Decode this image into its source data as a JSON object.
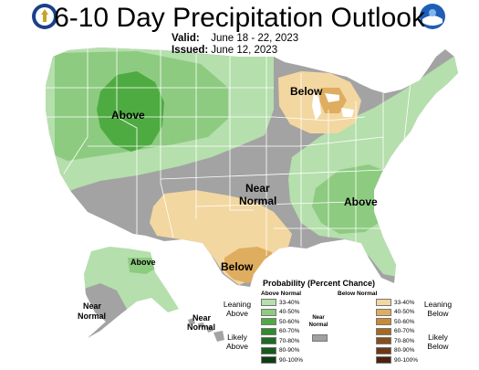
{
  "header": {
    "title": "6-10 Day Precipitation Outlook",
    "valid_label": "Valid:",
    "valid_value": "June 18 - 22, 2023",
    "issued_label": "Issued:",
    "issued_value": "June 12, 2023"
  },
  "logos": {
    "left": "doc-seal-icon",
    "right": "noaa-logo-icon"
  },
  "map_labels": {
    "west": "Above",
    "great_lakes": "Below",
    "central_near": "Near",
    "central_normal": "Normal",
    "southeast": "Above",
    "texas": "Below",
    "alaska": "Above",
    "alaska_near": "Near",
    "alaska_normal": "Normal",
    "hawaii_near": "Near",
    "hawaii_normal": "Normal"
  },
  "legend": {
    "title": "Probability (Percent Chance)",
    "above_header": "Above Normal",
    "below_header": "Below Normal",
    "near_label_1": "Near",
    "near_label_2": "Normal",
    "leaning_above_1": "Leaning",
    "leaning_above_2": "Above",
    "likely_above_1": "Likely",
    "likely_above_2": "Above",
    "leaning_below_1": "Leaning",
    "leaning_below_2": "Below",
    "likely_below_1": "Likely",
    "likely_below_2": "Below",
    "above": [
      {
        "range": "33-40%",
        "color": "#b5dfac"
      },
      {
        "range": "40-50%",
        "color": "#8dcb80"
      },
      {
        "range": "50-60%",
        "color": "#4eab41"
      },
      {
        "range": "60-70%",
        "color": "#2e8b2e"
      },
      {
        "range": "70-80%",
        "color": "#1e6b25"
      },
      {
        "range": "80-90%",
        "color": "#175a1e"
      },
      {
        "range": "90-100%",
        "color": "#0e3d13"
      }
    ],
    "below": [
      {
        "range": "33-40%",
        "color": "#f3d7a0"
      },
      {
        "range": "40-50%",
        "color": "#dfad5f"
      },
      {
        "range": "50-60%",
        "color": "#c98a36"
      },
      {
        "range": "60-70%",
        "color": "#a36a24"
      },
      {
        "range": "70-80%",
        "color": "#864f1b"
      },
      {
        "range": "80-90%",
        "color": "#6a3915"
      },
      {
        "range": "90-100%",
        "color": "#4a230c"
      }
    ],
    "near_color": "#a0a0a0"
  },
  "colors": {
    "near": "#a3a3a3",
    "border": "#ffffff",
    "ocean": "#ffffff"
  }
}
